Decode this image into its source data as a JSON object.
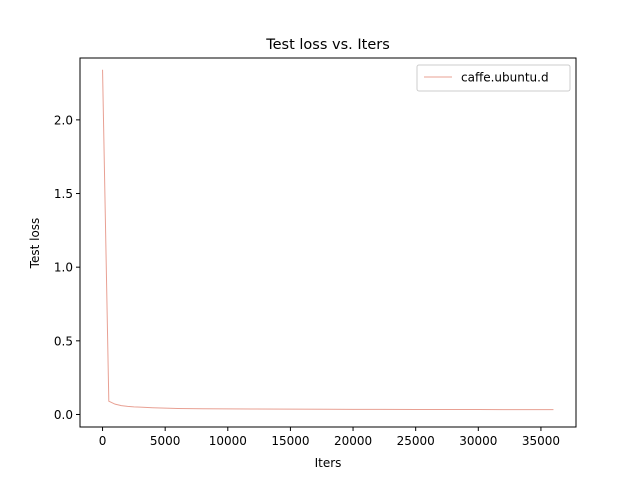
{
  "chart_data": {
    "type": "line",
    "title": "Test loss  vs. Iters",
    "xlabel": "Iters",
    "ylabel": "Test loss",
    "xlim": [
      -1800,
      37800
    ],
    "ylim": [
      -0.085,
      2.42
    ],
    "xticks": [
      0,
      5000,
      10000,
      15000,
      20000,
      25000,
      30000,
      35000
    ],
    "xtick_labels": [
      "0",
      "5000",
      "10000",
      "15000",
      "20000",
      "25000",
      "30000",
      "35000"
    ],
    "yticks": [
      0.0,
      0.5,
      1.0,
      1.5,
      2.0
    ],
    "ytick_labels": [
      "0.0",
      "0.5",
      "1.0",
      "1.5",
      "2.0"
    ],
    "grid": false,
    "legend_position": "top-right",
    "series": [
      {
        "name": "caffe.ubuntu.d",
        "color": "#e8a093",
        "x": [
          0,
          500,
          1000,
          1500,
          2000,
          2500,
          3000,
          4000,
          5000,
          6000,
          7000,
          8000,
          10000,
          12000,
          15000,
          18000,
          20000,
          22000,
          25000,
          28000,
          30000,
          32000,
          34000,
          36000
        ],
        "y": [
          2.34,
          0.09,
          0.07,
          0.06,
          0.055,
          0.052,
          0.05,
          0.046,
          0.043,
          0.041,
          0.04,
          0.039,
          0.038,
          0.037,
          0.036,
          0.0355,
          0.035,
          0.0345,
          0.034,
          0.0338,
          0.0335,
          0.0333,
          0.0332,
          0.033
        ]
      }
    ]
  }
}
